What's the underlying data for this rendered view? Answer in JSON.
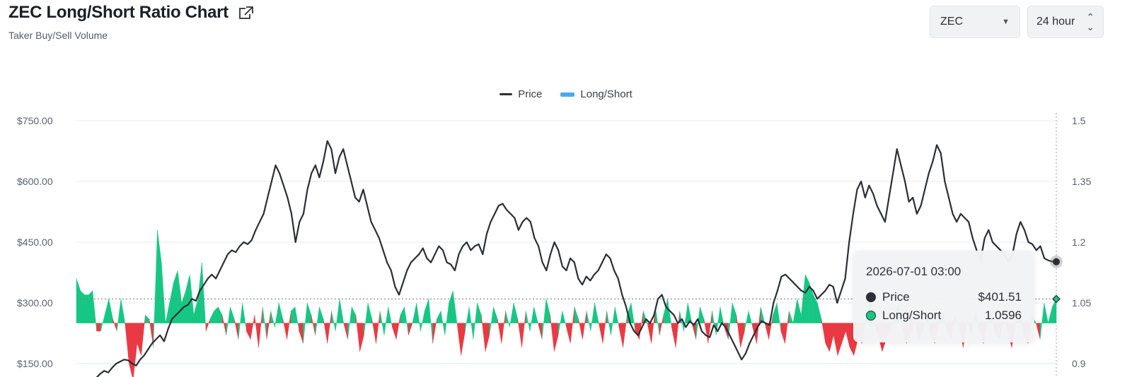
{
  "header": {
    "title": "ZEC Long/Short Ratio Chart",
    "subtitle": "Taker Buy/Sell Volume"
  },
  "controls": {
    "coin": "ZEC",
    "range": "24 hour"
  },
  "legend": {
    "price_label": "Price",
    "ratio_label": "Long/Short"
  },
  "colors": {
    "price_line": "#2b2e35",
    "positive_fill": "#16c784",
    "negative_fill": "#ea3943",
    "legend_ratio": "#4aa9f0"
  },
  "tooltip": {
    "time": "2026-07-01 03:00",
    "price_label": "Price",
    "price_value": "$401.51",
    "ratio_label": "Long/Short",
    "ratio_value": "1.0596"
  },
  "chart_data": {
    "type": "line",
    "left_axis": {
      "ticks": [
        "$750.00",
        "$600.00",
        "$450.00",
        "$300.00",
        "$150.00"
      ],
      "tick_values": [
        750,
        600,
        450,
        300,
        150
      ]
    },
    "right_axis": {
      "ticks": [
        "1.5",
        "1.35",
        "1.2",
        "1.05",
        "0.9"
      ],
      "tick_values": [
        1.5,
        1.35,
        1.2,
        1.05,
        0.9
      ],
      "baseline": 1.0
    },
    "series": [
      {
        "name": "Price",
        "values": [
          95,
          98,
          102,
          105,
          110,
          115,
          125,
          132,
          128,
          140,
          150,
          155,
          160,
          158,
          150,
          145,
          160,
          170,
          185,
          200,
          210,
          220,
          205,
          235,
          260,
          270,
          280,
          290,
          295,
          310,
          305,
          330,
          345,
          360,
          370,
          360,
          380,
          400,
          420,
          430,
          425,
          440,
          450,
          445,
          455,
          480,
          500,
          520,
          560,
          600,
          640,
          620,
          590,
          560,
          520,
          450,
          500,
          520,
          580,
          620,
          640,
          610,
          650,
          700,
          680,
          620,
          660,
          680,
          640,
          600,
          560,
          550,
          580,
          540,
          500,
          480,
          460,
          430,
          400,
          380,
          340,
          320,
          350,
          380,
          400,
          410,
          420,
          435,
          410,
          400,
          420,
          440,
          430,
          400,
          395,
          380,
          420,
          440,
          450,
          430,
          440,
          445,
          420,
          470,
          500,
          520,
          540,
          545,
          530,
          520,
          510,
          480,
          500,
          510,
          500,
          460,
          440,
          400,
          380,
          420,
          450,
          430,
          390,
          380,
          410,
          400,
          360,
          345,
          365,
          355,
          370,
          380,
          400,
          420,
          410,
          380,
          360,
          320,
          290,
          250,
          230,
          220,
          240,
          260,
          250,
          270,
          310,
          320,
          290,
          280,
          270,
          250,
          260,
          240,
          255,
          245,
          260,
          230,
          220,
          215,
          245,
          230,
          250,
          240,
          220,
          200,
          180,
          160,
          175,
          200,
          220,
          240,
          255,
          250,
          245,
          300,
          330,
          365,
          370,
          360,
          350,
          340,
          330,
          325,
          340,
          330,
          310,
          320,
          330,
          345,
          340,
          300,
          330,
          360,
          450,
          520,
          580,
          600,
          560,
          590,
          570,
          540,
          520,
          500,
          560,
          620,
          680,
          640,
          600,
          550,
          560,
          520,
          540,
          580,
          620,
          650,
          690,
          670,
          600,
          560,
          520,
          500,
          520,
          510,
          500,
          460,
          430,
          405,
          460,
          480,
          450,
          440,
          430,
          420,
          400,
          420,
          470,
          500,
          480,
          450,
          445,
          430,
          440,
          410,
          405,
          402,
          401.51
        ]
      },
      {
        "name": "Long/Short",
        "values": [
          1.11,
          1.08,
          1.07,
          1.07,
          1.08,
          0.98,
          0.98,
          1.02,
          1.06,
          1.01,
          0.98,
          1.06,
          1.0,
          0.9,
          0.86,
          0.95,
          0.92,
          1.02,
          1.01,
          0.94,
          1.23,
          1.15,
          1.0,
          1.05,
          1.1,
          1.13,
          1.05,
          1.08,
          1.12,
          1.02,
          1.06,
          1.15,
          0.98,
          1.01,
          1.03,
          1.04,
          1.02,
          0.97,
          1.04,
          1.01,
          0.96,
          1.05,
          0.98,
          0.96,
          1.02,
          0.94,
          1.04,
          0.96,
          1.03,
          0.99,
          1.05,
          1.01,
          0.96,
          1.03,
          1.04,
          0.98,
          0.95,
          1.05,
          1.02,
          0.97,
          1.04,
          1.01,
          0.95,
          1.03,
          0.98,
          1.06,
          1.0,
          0.96,
          1.04,
          1.02,
          0.93,
          0.97,
          1.05,
          1.01,
          0.95,
          1.03,
          0.97,
          1.04,
          0.99,
          0.96,
          1.02,
          1.04,
          0.97,
          1.0,
          1.05,
          0.98,
          1.03,
          1.06,
          0.95,
          1.01,
          1.03,
          0.97,
          1.05,
          1.08,
          1.0,
          0.92,
          0.98,
          1.04,
          0.96,
          1.05,
          1.02,
          0.93,
          0.97,
          1.04,
          1.01,
          0.95,
          1.03,
          0.99,
          1.05,
          1.01,
          0.94,
          1.03,
          0.98,
          1.04,
          1.0,
          0.96,
          1.06,
          1.02,
          0.93,
          0.97,
          1.03,
          0.99,
          0.95,
          1.04,
          1.01,
          0.96,
          1.03,
          0.98,
          1.05,
          1.0,
          0.95,
          1.03,
          0.97,
          1.04,
          0.99,
          0.94,
          1.02,
          1.05,
          0.98,
          0.96,
          1.03,
          1.0,
          0.95,
          1.04,
          0.97,
          1.02,
          1.06,
          0.99,
          0.94,
          1.03,
          0.98,
          1.05,
          1.0,
          0.96,
          1.04,
          1.01,
          0.95,
          1.03,
          0.97,
          1.04,
          0.99,
          0.96,
          1.05,
          1.02,
          0.94,
          0.98,
          1.03,
          0.99,
          0.95,
          1.04,
          1.0,
          0.96,
          1.02,
          1.05,
          0.98,
          0.95,
          1.03,
          1.0,
          1.06,
          1.02,
          1.12,
          1.1,
          1.07,
          1.05,
          1.01,
          0.95,
          0.93,
          0.97,
          0.92,
          0.95,
          0.98,
          0.94,
          0.92,
          0.96,
          0.95,
          1.02,
          1.06,
          1.0,
          0.97,
          0.93,
          0.96,
          0.98,
          1.02,
          1.05,
          0.99,
          0.95,
          0.97,
          1.01,
          0.96,
          0.98,
          1.02,
          0.97,
          0.95,
          1.0,
          1.03,
          0.98,
          0.96,
          1.02,
          0.99,
          0.94,
          1.01,
          0.97,
          1.03,
          0.98,
          0.95,
          1.0,
          1.02,
          0.97,
          0.96,
          1.01,
          0.98,
          0.94,
          1.0,
          1.03,
          0.97,
          0.95,
          1.02,
          1.0,
          0.96,
          1.05,
          1.0,
          1.04,
          1.0596
        ]
      }
    ],
    "left_ylim": [
      150,
      750
    ],
    "right_ylim": [
      0.9,
      1.5
    ],
    "grid": true,
    "legend_position": "top-center"
  }
}
